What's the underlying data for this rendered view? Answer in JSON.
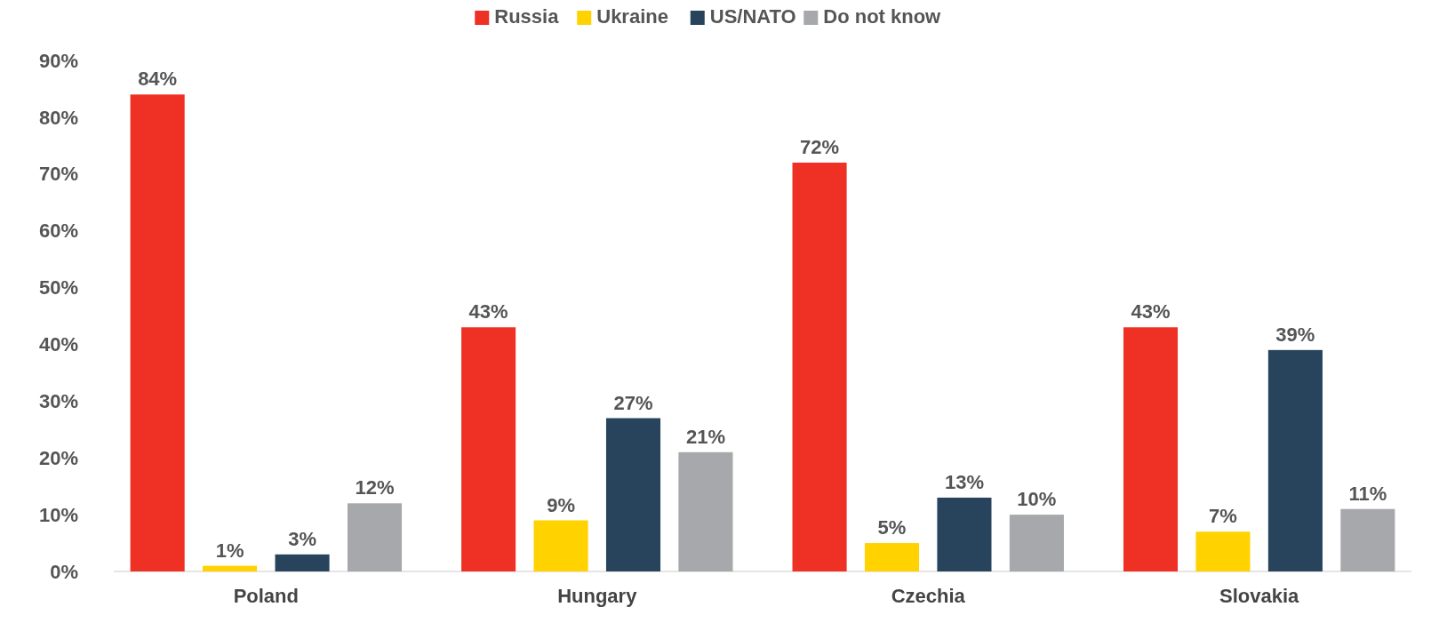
{
  "chart_data": {
    "type": "bar",
    "categories": [
      "Poland",
      "Hungary",
      "Czechia",
      "Slovakia"
    ],
    "series": [
      {
        "name": "Russia",
        "color": "#ee3124",
        "values": [
          84,
          43,
          72,
          43
        ],
        "value_labels": [
          "84%",
          "43%",
          "72%",
          "43%"
        ]
      },
      {
        "name": "Ukraine",
        "color": "#ffd200",
        "values": [
          1,
          9,
          5,
          7
        ],
        "value_labels": [
          "1%",
          "9%",
          "5%",
          "7%"
        ]
      },
      {
        "name": "US/NATO",
        "color": "#27445c",
        "values": [
          3,
          27,
          13,
          39
        ],
        "value_labels": [
          "3%",
          "27%",
          "13%",
          "39%"
        ]
      },
      {
        "name": "Do not know",
        "color": "#a6a8ab",
        "values": [
          12,
          21,
          10,
          11
        ],
        "value_labels": [
          "12%",
          "21%",
          "10%",
          "11%"
        ]
      }
    ],
    "ylim": [
      0,
      90
    ],
    "yticks": [
      {
        "value": 0,
        "label": "0%"
      },
      {
        "value": 10,
        "label": "10%"
      },
      {
        "value": 20,
        "label": "20%"
      },
      {
        "value": 30,
        "label": "30%"
      },
      {
        "value": 40,
        "label": "40%"
      },
      {
        "value": 50,
        "label": "50%"
      },
      {
        "value": 60,
        "label": "60%"
      },
      {
        "value": 70,
        "label": "70%"
      },
      {
        "value": 80,
        "label": "80%"
      },
      {
        "value": 90,
        "label": "90%"
      }
    ],
    "grid": false,
    "legend": "top"
  }
}
